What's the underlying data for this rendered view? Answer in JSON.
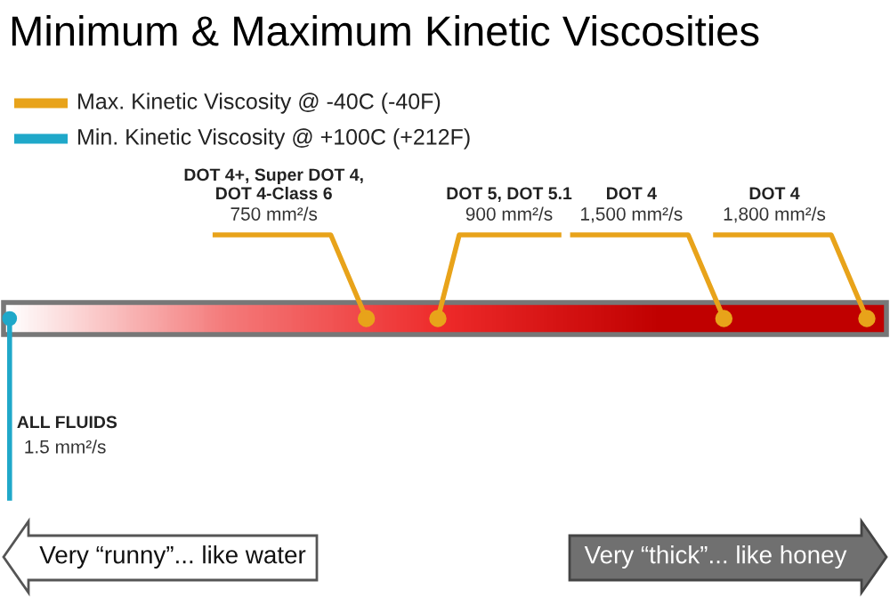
{
  "chart_data": {
    "type": "other",
    "title": "Minimum & Maximum Kinetic Viscosities",
    "categories": [
      "ALL FLUIDS",
      "DOT 4+, Super DOT 4,\nDOT 4-Class 6",
      "DOT 5, DOT 5.1",
      "DOT 4",
      "DOT 4"
    ],
    "series": [
      {
        "name": "Max. Kinetic Viscosity @ -40C (-40F)",
        "color": "#e8a31a",
        "values": [
          null,
          750,
          900,
          1500,
          1800
        ],
        "value_labels": [
          null,
          "750 mm²/s",
          "900 mm²/s",
          "1,500 mm²/s",
          "1,800 mm²/s"
        ]
      },
      {
        "name": "Min. Kinetic Viscosity @ +100C (+212F)",
        "color": "#1fa8c9",
        "values": [
          1.5,
          null,
          null,
          null,
          null
        ],
        "value_labels": [
          "1.5 mm²/s",
          null,
          null,
          null,
          null
        ]
      }
    ],
    "annotations": [
      "Very “runny”... like water",
      "Very “thick”... like honey"
    ],
    "legend": "top left"
  }
}
